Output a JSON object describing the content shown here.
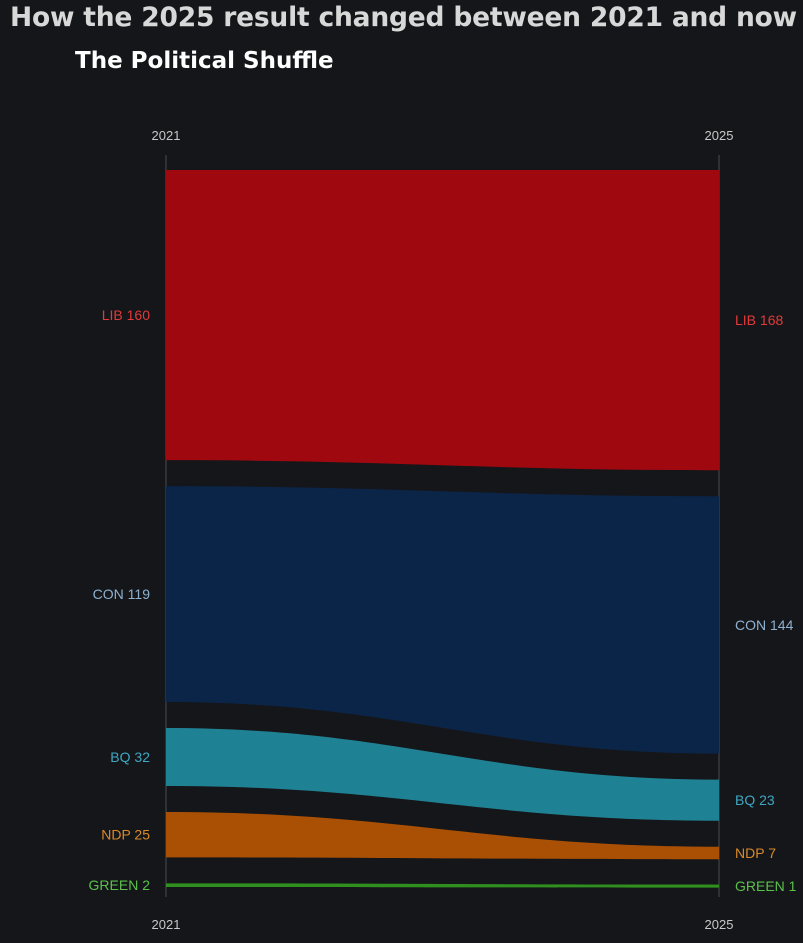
{
  "page": {
    "heading": "How the 2025 result changed between 2021 and now",
    "subtitle": "The Political Shuffle"
  },
  "chart_data": {
    "type": "area",
    "subtype": "slope-flow",
    "x": [
      "2021",
      "2025"
    ],
    "series": [
      {
        "name": "LIB",
        "values": [
          160,
          168
        ],
        "color": "#a00810",
        "label_color": "#e23a3a"
      },
      {
        "name": "CON",
        "values": [
          119,
          144
        ],
        "color": "#0b2548",
        "label_color": "#8fb1d0"
      },
      {
        "name": "BQ",
        "values": [
          32,
          23
        ],
        "color": "#1f8194",
        "label_color": "#3fa7c2"
      },
      {
        "name": "NDP",
        "values": [
          25,
          7
        ],
        "color": "#aa5005",
        "label_color": "#d98a2a"
      },
      {
        "name": "GREEN",
        "values": [
          2,
          1
        ],
        "color": "#2f8f1f",
        "label_color": "#5cc14a"
      }
    ],
    "labels": {
      "2021": [
        "LIB 160",
        "CON 119",
        "BQ 32",
        "NDP 25",
        "GREEN 2"
      ],
      "2025": [
        "LIB 168",
        "CON 144",
        "BQ 23",
        "NDP 7",
        "GREEN 1"
      ]
    },
    "axis_color": "#4a4c52",
    "text_color": "#c8c8c8",
    "grid": false
  }
}
